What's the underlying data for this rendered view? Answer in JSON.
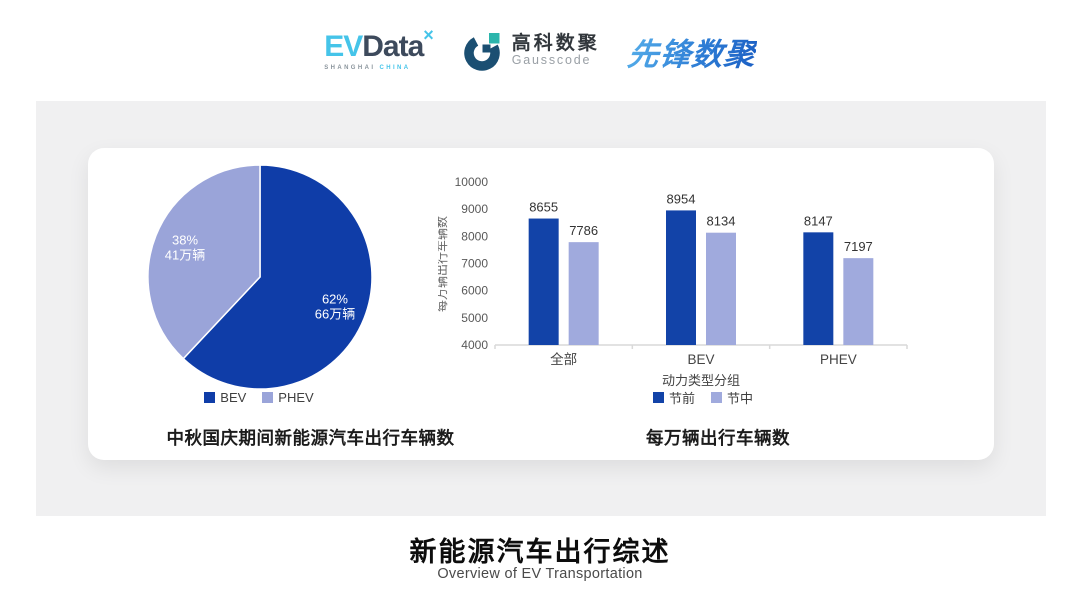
{
  "header": {
    "evdata": {
      "ev": "EV",
      "data": "Data",
      "sup": "×",
      "sub_gray": "SHANGHAI",
      "sub_cyan": "CHINA"
    },
    "gausscode": {
      "cn": "高科数聚",
      "en": "Gausscode"
    },
    "pioneer": {
      "text": "先锋数聚"
    }
  },
  "colors": {
    "panel_bg": "#f0f0f1",
    "pie_bev": "#0f3da8",
    "pie_phev": "#9aa4d9",
    "bar_pre": "#1243a8",
    "bar_mid": "#a0aadd",
    "axis_text": "#595959",
    "value_text": "#333333",
    "baseline": "#d9d9d9",
    "evdata_cyan": "#45c4e9",
    "evdata_slate": "#3d4a5c",
    "gausscode_navy": "#1b4f72",
    "gausscode_teal": "#2cb5ac"
  },
  "chart_data": [
    {
      "type": "pie",
      "title": "中秋国庆期间新能源汽车出行车辆数",
      "slices": [
        {
          "label": "BEV",
          "percent": 62,
          "value_label": "66万辆",
          "color": "#0f3da8"
        },
        {
          "label": "PHEV",
          "percent": 38,
          "value_label": "41万辆",
          "color": "#9aa4d9"
        }
      ],
      "start_angle": "top",
      "direction": "clockwise",
      "legend_position": "bottom"
    },
    {
      "type": "bar",
      "title": "每万辆出行车辆数",
      "categories": [
        "全部",
        "BEV",
        "PHEV"
      ],
      "series": [
        {
          "name": "节前",
          "values": [
            8655,
            8954,
            8147
          ],
          "color": "#1243a8"
        },
        {
          "name": "节中",
          "values": [
            7786,
            8134,
            7197
          ],
          "color": "#a0aadd"
        }
      ],
      "xlabel": "动力类型分组",
      "ylabel": "每万辆出行车辆数",
      "ylim": [
        4000,
        10000
      ],
      "ytick_step": 1000,
      "grid": false,
      "legend_position": "bottom"
    }
  ],
  "footer": {
    "title": "新能源汽车出行综述",
    "subtitle": "Overview of EV Transportation"
  }
}
